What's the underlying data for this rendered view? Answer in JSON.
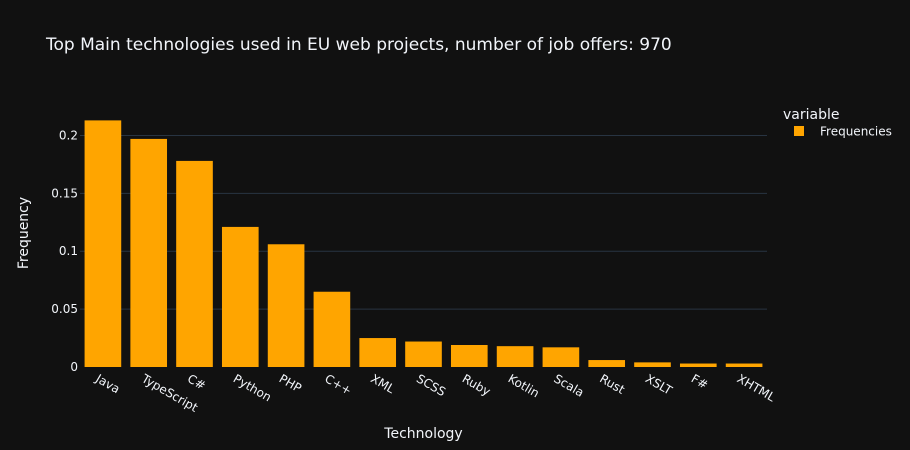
{
  "chart_data": {
    "type": "bar",
    "title": "Top Main technologies used in EU web projects, number of job offers: 970",
    "xlabel": "Technology",
    "ylabel": "Frequency",
    "categories": [
      "Java",
      "TypeScript",
      "C#",
      "Python",
      "PHP",
      "C++",
      "XML",
      "SCSS",
      "Ruby",
      "Kotlin",
      "Scala",
      "Rust",
      "XSLT",
      "F#",
      "XHTML"
    ],
    "series": [
      {
        "name": "Frequencies",
        "values": [
          0.213,
          0.197,
          0.178,
          0.121,
          0.106,
          0.065,
          0.025,
          0.022,
          0.019,
          0.018,
          0.017,
          0.006,
          0.004,
          0.003,
          0.003
        ]
      }
    ],
    "ylim": [
      0,
      0.2237
    ],
    "yticks": [
      0,
      0.05,
      0.1,
      0.15,
      0.2
    ],
    "ytick_labels": [
      "0",
      "0.05",
      "0.1",
      "0.15",
      "0.2"
    ],
    "legend": {
      "title": "variable",
      "placement": "right"
    },
    "grid": true,
    "colors": {
      "bar": "#FFA500",
      "background": "#111111",
      "grid": "#283442",
      "text": "#f2f5fa"
    }
  }
}
